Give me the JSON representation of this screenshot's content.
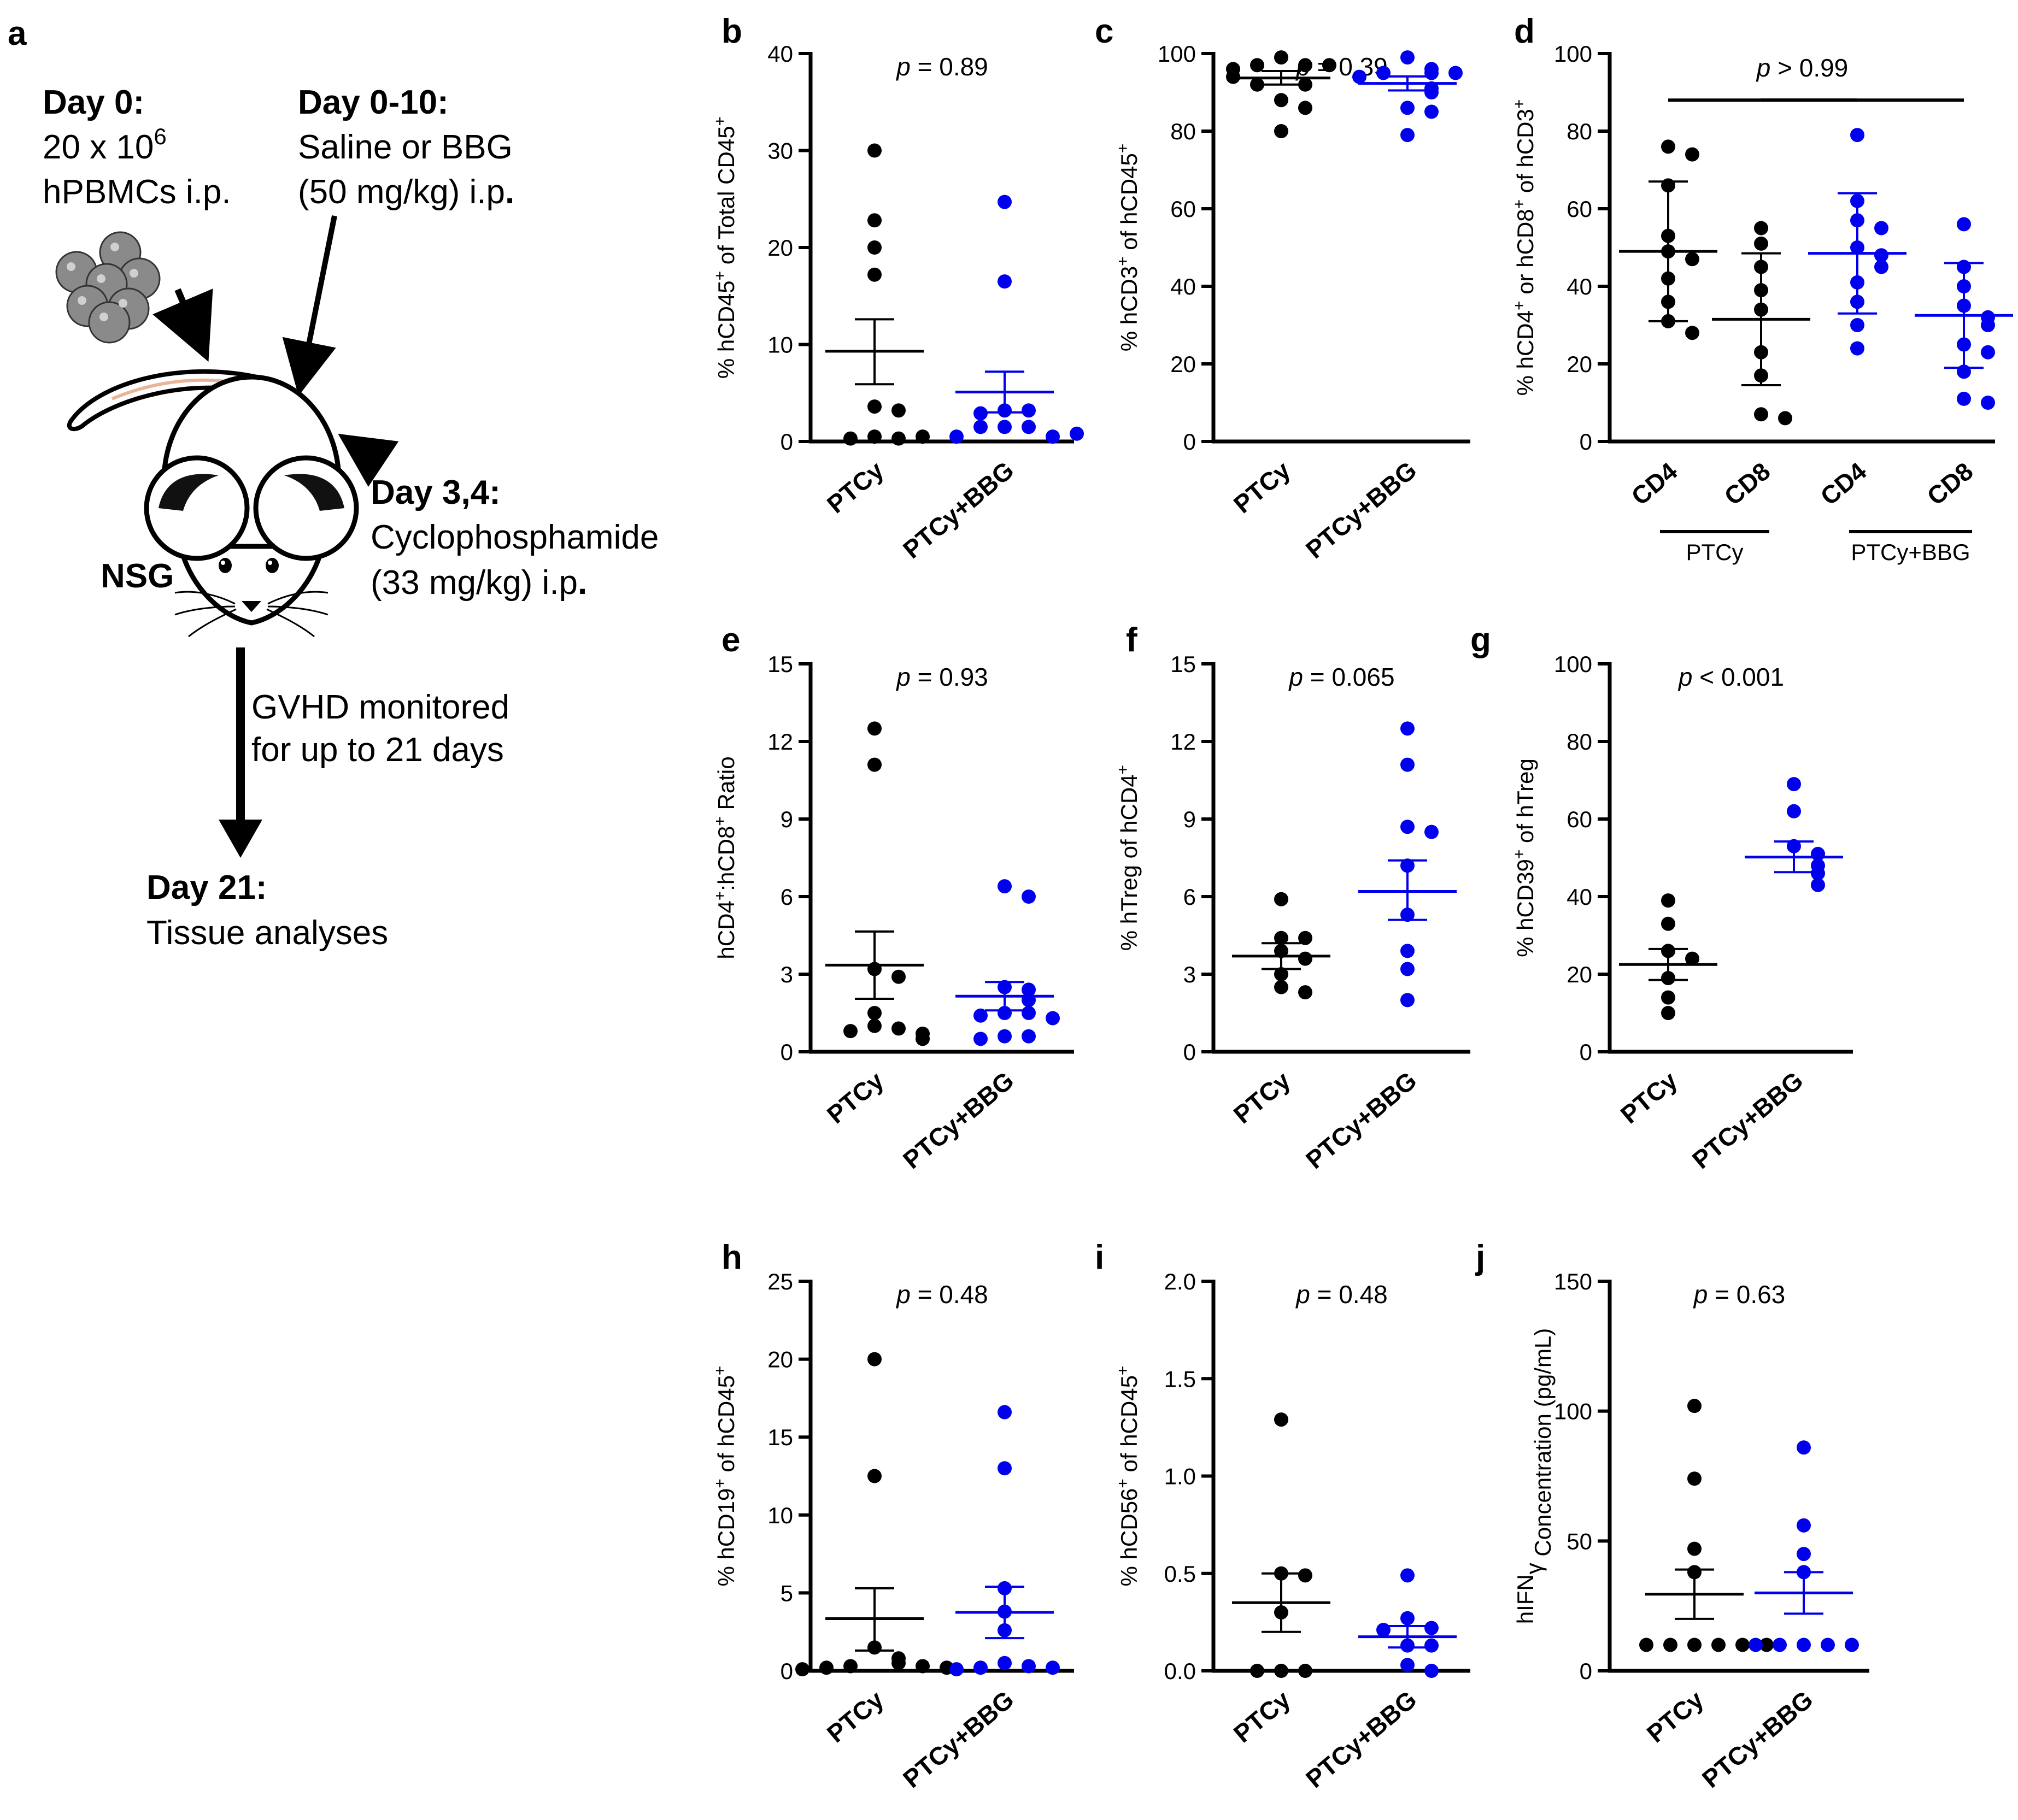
{
  "schematic": {
    "panel_letter": "a",
    "day0_title": "Day 0:",
    "day0_line1": "20 x 10",
    "day0_sup": "6",
    "day0_line2": "hPBMCs i.p.",
    "day010_title": "Day 0-10:",
    "day010_line1": "Saline or BBG",
    "day010_line2_main": "(50 mg/kg) i.p",
    "day010_line2_dot": ".",
    "day34_title": "Day 3,4:",
    "day34_line1": "Cyclophosphamide",
    "day34_line2_main": "(33 mg/kg) i.p",
    "day34_line2_dot": ".",
    "mouse_label": "NSG",
    "gvhd_line1": "GVHD monitored",
    "gvhd_line2": "for up to 21 days",
    "day21_title": "Day 21:",
    "day21_line1": "Tissue analyses"
  },
  "colors": {
    "PTCy": "#000000",
    "PTCy+BBG": "#0000ee",
    "cell_fill": "#8a8a8a",
    "tail": "#e8b49a"
  },
  "chart_data": [
    {
      "panel": "b",
      "type": "scatter",
      "ylabel_parts": [
        [
          "% hCD45",
          ""
        ],
        [
          "+",
          "sup"
        ],
        [
          " of Total CD45",
          ""
        ],
        [
          "+",
          "sup"
        ]
      ],
      "ylim": [
        0,
        40
      ],
      "yticks": [
        0,
        10,
        20,
        30,
        40
      ],
      "pvalue": "= 0.89",
      "categories": [
        "PTCy",
        "PTCy+BBG"
      ],
      "groups": [
        {
          "name": "PTCy",
          "values": [
            30.0,
            22.8,
            20.0,
            17.2,
            3.6,
            3.2,
            0.5,
            0.3,
            0.3,
            0.5
          ],
          "mean": 9.3,
          "sem_low": 5.9,
          "sem_high": 12.6
        },
        {
          "name": "PTCy+BBG",
          "values": [
            24.7,
            16.5,
            3.2,
            3.2,
            2.9,
            1.5,
            1.5,
            1.5,
            0.5,
            0.5,
            0.8
          ],
          "mean": 5.1,
          "sem_low": 3.0,
          "sem_high": 7.2
        }
      ]
    },
    {
      "panel": "c",
      "type": "scatter",
      "ylabel_parts": [
        [
          "% hCD3",
          ""
        ],
        [
          "+",
          "sup"
        ],
        [
          " of hCD45",
          ""
        ],
        [
          "+",
          "sup"
        ]
      ],
      "ylim": [
        0,
        100
      ],
      "yticks": [
        0,
        20,
        40,
        60,
        80,
        100
      ],
      "pvalue": "= 0.39",
      "categories": [
        "PTCy",
        "PTCy+BBG"
      ],
      "groups": [
        {
          "name": "PTCy",
          "values": [
            99,
            97,
            97,
            97,
            96,
            94,
            92,
            92,
            88,
            86,
            80
          ],
          "mean": 93.7,
          "sem_low": 92.0,
          "sem_high": 95.5
        },
        {
          "name": "PTCy+BBG",
          "values": [
            99,
            96,
            95,
            95,
            95,
            94,
            91,
            90,
            86,
            85,
            79
          ],
          "mean": 92.3,
          "sem_low": 90.5,
          "sem_high": 94.1
        }
      ]
    },
    {
      "panel": "d",
      "type": "scatter",
      "ylabel_parts": [
        [
          "% hCD4",
          ""
        ],
        [
          "+",
          "sup"
        ],
        [
          " or hCD8",
          ""
        ],
        [
          "+",
          "sup"
        ],
        [
          " of hCD3",
          ""
        ],
        [
          "+",
          "sup"
        ]
      ],
      "ylim": [
        0,
        100
      ],
      "yticks": [
        0,
        20,
        40,
        60,
        80,
        100
      ],
      "pvalue": "> 0.99",
      "categories": [
        "CD4",
        "CD8",
        "CD4",
        "CD8"
      ],
      "group_labels": [
        "PTCy",
        "PTCy+BBG"
      ],
      "groups": [
        {
          "name": "PTCy",
          "values": [
            76,
            74,
            66,
            53,
            49,
            47,
            42,
            36,
            31,
            28
          ],
          "mean": 49.0,
          "sem_low": 31.0,
          "sem_high": 67.0
        },
        {
          "name": "PTCy",
          "values": [
            55,
            51,
            45,
            39,
            34,
            23,
            17,
            7,
            6
          ],
          "mean": 31.5,
          "sem_low": 14.5,
          "sem_high": 48.5
        },
        {
          "name": "PTCy+BBG",
          "values": [
            79,
            62,
            57,
            55,
            50,
            48,
            45,
            41,
            36,
            30,
            24
          ],
          "mean": 48.5,
          "sem_low": 33.0,
          "sem_high": 64.0
        },
        {
          "name": "PTCy+BBG",
          "values": [
            56,
            45,
            40,
            35,
            32,
            30,
            25,
            23,
            18,
            11,
            10
          ],
          "mean": 32.5,
          "sem_low": 19.0,
          "sem_high": 46.0
        }
      ]
    },
    {
      "panel": "e",
      "type": "scatter",
      "ylabel_parts": [
        [
          "hCD4",
          ""
        ],
        [
          "+",
          "sup"
        ],
        [
          ":hCD8",
          ""
        ],
        [
          "+",
          "sup"
        ],
        [
          " Ratio",
          ""
        ]
      ],
      "ylim": [
        0,
        15
      ],
      "yticks": [
        0,
        3,
        6,
        9,
        12,
        15
      ],
      "pvalue": "= 0.93",
      "categories": [
        "PTCy",
        "PTCy+BBG"
      ],
      "groups": [
        {
          "name": "PTCy",
          "values": [
            12.5,
            11.1,
            3.2,
            2.9,
            1.5,
            1.0,
            0.9,
            0.8,
            0.7,
            0.5
          ],
          "mean": 3.35,
          "sem_low": 2.05,
          "sem_high": 4.65
        },
        {
          "name": "PTCy+BBG",
          "values": [
            6.4,
            6.0,
            2.5,
            2.4,
            2.0,
            1.5,
            1.5,
            1.4,
            1.3,
            0.6,
            0.6,
            0.5
          ],
          "mean": 2.15,
          "sem_low": 1.6,
          "sem_high": 2.7
        }
      ]
    },
    {
      "panel": "f",
      "type": "scatter",
      "ylabel_parts": [
        [
          "% hTreg of hCD4",
          ""
        ],
        [
          "+",
          "sup"
        ]
      ],
      "ylim": [
        0,
        15
      ],
      "yticks": [
        0,
        3,
        6,
        9,
        12,
        15
      ],
      "pvalue": "= 0.065",
      "categories": [
        "PTCy",
        "PTCy+BBG"
      ],
      "groups": [
        {
          "name": "PTCy",
          "values": [
            5.9,
            4.4,
            4.4,
            3.9,
            3.6,
            3.0,
            2.5,
            2.3
          ],
          "mean": 3.7,
          "sem_low": 3.2,
          "sem_high": 4.2
        },
        {
          "name": "PTCy+BBG",
          "values": [
            12.5,
            11.1,
            8.7,
            8.5,
            7.2,
            5.3,
            3.9,
            3.2,
            2.0
          ],
          "mean": 6.2,
          "sem_low": 5.1,
          "sem_high": 7.4
        }
      ]
    },
    {
      "panel": "g",
      "type": "scatter",
      "ylabel_parts": [
        [
          "% hCD39",
          ""
        ],
        [
          "+",
          "sup"
        ],
        [
          " of hTreg",
          ""
        ]
      ],
      "ylim": [
        0,
        100
      ],
      "yticks": [
        0,
        20,
        40,
        60,
        80,
        100
      ],
      "pvalue": "< 0.001",
      "categories": [
        "PTCy",
        "PTCy+BBG"
      ],
      "groups": [
        {
          "name": "PTCy",
          "values": [
            39,
            33,
            26,
            24,
            19,
            14,
            10
          ],
          "mean": 22.5,
          "sem_low": 18.5,
          "sem_high": 26.5
        },
        {
          "name": "PTCy+BBG",
          "values": [
            69,
            62,
            53,
            51,
            48,
            46,
            43
          ],
          "mean": 50.2,
          "sem_low": 46.3,
          "sem_high": 54.2
        }
      ]
    },
    {
      "panel": "h",
      "type": "scatter",
      "ylabel_parts": [
        [
          "% hCD19",
          ""
        ],
        [
          "+",
          "sup"
        ],
        [
          " of hCD45",
          ""
        ],
        [
          "+",
          "sup"
        ]
      ],
      "ylim": [
        0,
        25
      ],
      "yticks": [
        0,
        5,
        10,
        15,
        20,
        25
      ],
      "pvalue": "= 0.48",
      "categories": [
        "PTCy",
        "PTCy+BBG"
      ],
      "groups": [
        {
          "name": "PTCy",
          "values": [
            20.0,
            12.5,
            1.5,
            0.8,
            0.5,
            0.3,
            0.3,
            0.2,
            0.2,
            0.1
          ],
          "mean": 3.35,
          "sem_low": 1.3,
          "sem_high": 5.3
        },
        {
          "name": "PTCy+BBG",
          "values": [
            16.6,
            13.0,
            5.3,
            3.8,
            2.6,
            0.5,
            0.3,
            0.2,
            0.2,
            0.1
          ],
          "mean": 3.75,
          "sem_low": 2.1,
          "sem_high": 5.4
        }
      ]
    },
    {
      "panel": "i",
      "type": "scatter",
      "ylabel_parts": [
        [
          "% hCD56",
          ""
        ],
        [
          "+",
          "sup"
        ],
        [
          " of hCD45",
          ""
        ],
        [
          "+",
          "sup"
        ]
      ],
      "ylim": [
        0,
        2.0
      ],
      "yticks": [
        0,
        0.5,
        1.0,
        1.5,
        2.0
      ],
      "ytick_labels": [
        "0.0",
        "0.5",
        "1.0",
        "1.5",
        "2.0"
      ],
      "pvalue": "= 0.48",
      "categories": [
        "PTCy",
        "PTCy+BBG"
      ],
      "groups": [
        {
          "name": "PTCy",
          "values": [
            1.29,
            0.5,
            0.49,
            0.3,
            0.0,
            0.0,
            0.0
          ],
          "mean": 0.35,
          "sem_low": 0.2,
          "sem_high": 0.5
        },
        {
          "name": "PTCy+BBG",
          "values": [
            0.49,
            0.27,
            0.22,
            0.21,
            0.13,
            0.13,
            0.03,
            0.0
          ],
          "mean": 0.175,
          "sem_low": 0.12,
          "sem_high": 0.23
        }
      ]
    },
    {
      "panel": "j",
      "type": "scatter",
      "ylabel_parts": [
        [
          "hIFN",
          ""
        ],
        [
          "γ",
          ""
        ],
        [
          " Concentration (pg/mL)",
          ""
        ]
      ],
      "ylim": [
        0,
        150
      ],
      "yticks": [
        0,
        50,
        100,
        150
      ],
      "pvalue": "= 0.63",
      "categories": [
        "PTCy",
        "PTCy+BBG"
      ],
      "groups": [
        {
          "name": "PTCy",
          "values": [
            102,
            74,
            47,
            38,
            10,
            10,
            10,
            10,
            10,
            10
          ],
          "mean": 29.5,
          "sem_low": 20.0,
          "sem_high": 39.0
        },
        {
          "name": "PTCy+BBG",
          "values": [
            86,
            56,
            45,
            38,
            10,
            10,
            10,
            10,
            10
          ],
          "mean": 30.0,
          "sem_low": 22.0,
          "sem_high": 38.0
        }
      ]
    }
  ]
}
